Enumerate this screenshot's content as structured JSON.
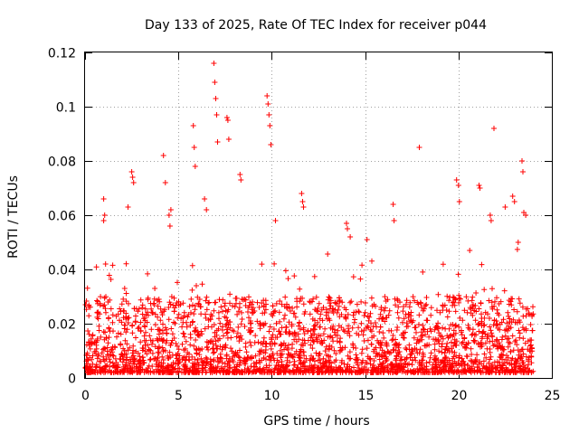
{
  "chart_data": {
    "type": "scatter",
    "title": "Day 133 of 2025, Rate Of TEC Index for receiver p044",
    "xlabel": "GPS time / hours",
    "ylabel": "ROTI / TECUs",
    "xlim": [
      0,
      25
    ],
    "ylim": [
      0,
      0.12
    ],
    "x_ticks": [
      0,
      5,
      10,
      15,
      20,
      25
    ],
    "x_tick_labels": [
      "0",
      "5",
      "10",
      "15",
      "20",
      "25"
    ],
    "y_ticks": [
      0,
      0.02,
      0.04,
      0.06,
      0.08,
      0.1,
      0.12
    ],
    "y_tick_labels": [
      "0",
      "0.02",
      "0.04",
      "0.06",
      "0.08",
      "0.1",
      "0.12"
    ],
    "grid": true,
    "marker": "plus",
    "marker_color": "#ff0000",
    "series": [
      {
        "name": "ROTI",
        "description": "Dense band of ROTI values mostly between 0.002 and 0.03 TECU/s across 0-24 h, with representative peaks listed explicitly",
        "base_band": {
          "x_range": [
            0,
            24
          ],
          "y_min": 0.002,
          "y_typical_max": 0.03
        },
        "x": [
          1.0,
          1.0,
          1.05,
          1.1,
          2.3,
          2.5,
          2.55,
          2.6,
          4.2,
          4.3,
          4.5,
          4.55,
          4.6,
          5.8,
          5.85,
          5.9,
          6.4,
          6.5,
          6.9,
          6.95,
          7.0,
          7.05,
          7.1,
          7.6,
          7.65,
          7.7,
          8.3,
          8.35,
          9.75,
          9.8,
          9.85,
          9.9,
          9.95,
          10.2,
          11.6,
          11.65,
          11.7,
          14.0,
          14.05,
          14.2,
          15.1,
          16.5,
          16.55,
          17.9,
          19.9,
          20.0,
          20.05,
          20.6,
          21.1,
          21.15,
          21.7,
          21.75,
          21.9,
          22.5,
          22.9,
          23.0,
          23.2,
          23.4,
          23.45,
          23.5,
          23.6
        ],
        "values": [
          0.066,
          0.058,
          0.06,
          0.042,
          0.063,
          0.076,
          0.074,
          0.072,
          0.082,
          0.072,
          0.06,
          0.056,
          0.062,
          0.093,
          0.085,
          0.078,
          0.066,
          0.062,
          0.116,
          0.109,
          0.103,
          0.097,
          0.087,
          0.096,
          0.095,
          0.088,
          0.075,
          0.073,
          0.104,
          0.101,
          0.097,
          0.093,
          0.086,
          0.058,
          0.068,
          0.065,
          0.063,
          0.057,
          0.055,
          0.052,
          0.051,
          0.064,
          0.058,
          0.085,
          0.073,
          0.071,
          0.065,
          0.047,
          0.071,
          0.07,
          0.06,
          0.058,
          0.092,
          0.063,
          0.067,
          0.065,
          0.05,
          0.08,
          0.076,
          0.061,
          0.06
        ]
      }
    ]
  }
}
